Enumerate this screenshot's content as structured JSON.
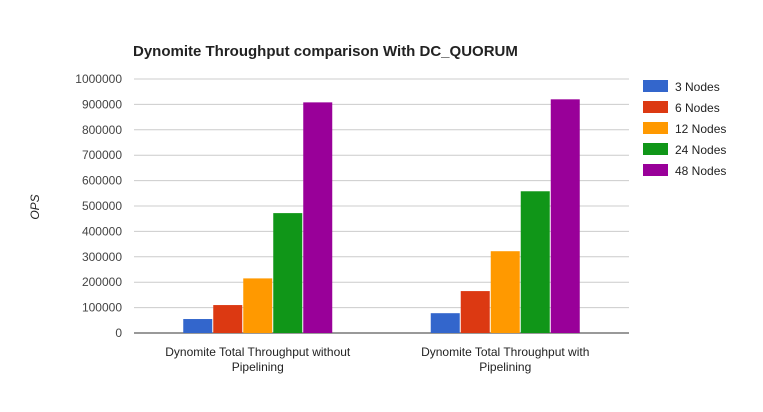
{
  "chart_data": {
    "type": "bar",
    "title": "Dynomite Throughput comparison With DC_QUORUM",
    "ylabel": "OPS",
    "xlabel": "",
    "categories": [
      [
        "Dynomite Total Throughput without",
        "Pipelining"
      ],
      [
        "Dynomite Total Throughput with",
        "Pipelining"
      ]
    ],
    "ylim": [
      0,
      1000000
    ],
    "yticks": [
      "0",
      "100000",
      "200000",
      "300000",
      "400000",
      "500000",
      "600000",
      "700000",
      "800000",
      "900000",
      "1000000"
    ],
    "series": [
      {
        "name": "3 Nodes",
        "color": "#3366cc",
        "values": [
          55000,
          78000
        ]
      },
      {
        "name": "6 Nodes",
        "color": "#dc3912",
        "values": [
          110000,
          165000
        ]
      },
      {
        "name": "12 Nodes",
        "color": "#ff9900",
        "values": [
          215000,
          322000
        ]
      },
      {
        "name": "24 Nodes",
        "color": "#109618",
        "values": [
          472000,
          558000
        ]
      },
      {
        "name": "48 Nodes",
        "color": "#990099",
        "values": [
          908000,
          920000
        ]
      }
    ],
    "grid": true,
    "legend_position": "right"
  }
}
